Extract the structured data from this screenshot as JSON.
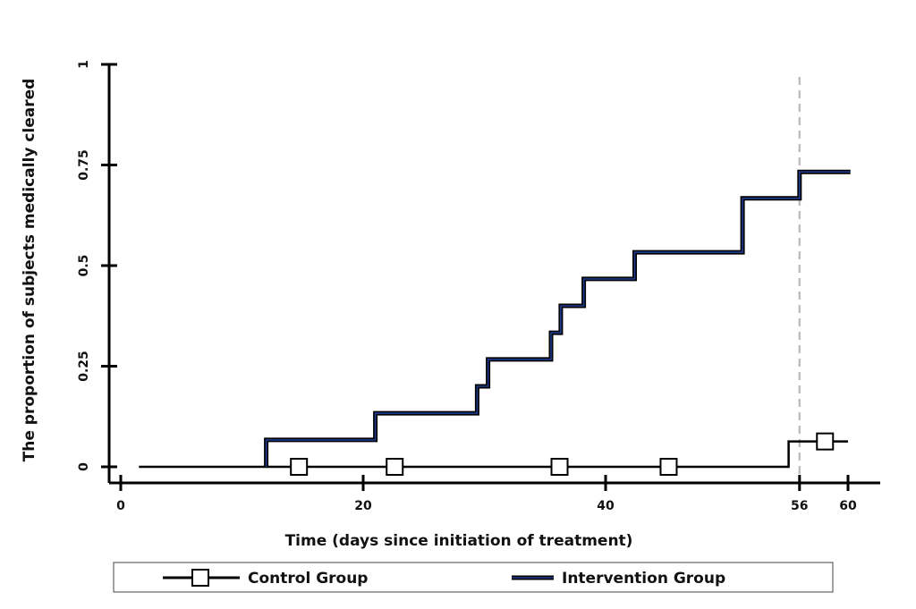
{
  "chart_data": {
    "type": "line",
    "step": true,
    "title": "",
    "xlabel": "Time (days since initiation of treatment)",
    "ylabel": "The proportion of subjects medically cleared",
    "xlim": [
      0,
      64
    ],
    "ylim": [
      -0.04,
      1.0
    ],
    "x_ticks": [
      0,
      20,
      40,
      56,
      60
    ],
    "y_ticks": [
      0,
      0.25,
      0.5,
      0.75,
      1
    ],
    "x_tick_labels": [
      "0",
      "20",
      "40",
      "56",
      "60"
    ],
    "y_tick_labels": [
      "0",
      "0.25",
      "0.5",
      "0.75",
      "1"
    ],
    "reference_line": {
      "x": 56,
      "style": "dashed",
      "color": "#bfbfbf"
    },
    "series": [
      {
        "name": "Control Group",
        "color": "#000000",
        "marker": "hollow-square",
        "x": [
          1.5,
          55.1,
          55.1,
          60
        ],
        "y": [
          0,
          0,
          0.063,
          0.063
        ],
        "marker_points": [
          {
            "x": 14.7,
            "y": 0
          },
          {
            "x": 22.6,
            "y": 0
          },
          {
            "x": 36.2,
            "y": 0
          },
          {
            "x": 45.2,
            "y": 0
          },
          {
            "x": 58.1,
            "y": 0.063
          }
        ]
      },
      {
        "name": "Intervention Group",
        "color": "#0b1a4a",
        "marker": "none",
        "x": [
          12,
          12,
          21,
          21,
          29.4,
          29.4,
          30.3,
          30.3,
          35.5,
          35.5,
          36.3,
          36.3,
          38.2,
          38.2,
          42.4,
          42.4,
          51.3,
          51.3,
          56,
          56,
          60.2
        ],
        "y": [
          0,
          0.067,
          0.067,
          0.133,
          0.133,
          0.2,
          0.2,
          0.267,
          0.267,
          0.333,
          0.333,
          0.4,
          0.4,
          0.467,
          0.467,
          0.533,
          0.533,
          0.667,
          0.667,
          0.733,
          0.733
        ]
      }
    ],
    "legend": {
      "position": "bottom",
      "entries": [
        "Control Group",
        "Intervention Group"
      ]
    }
  }
}
